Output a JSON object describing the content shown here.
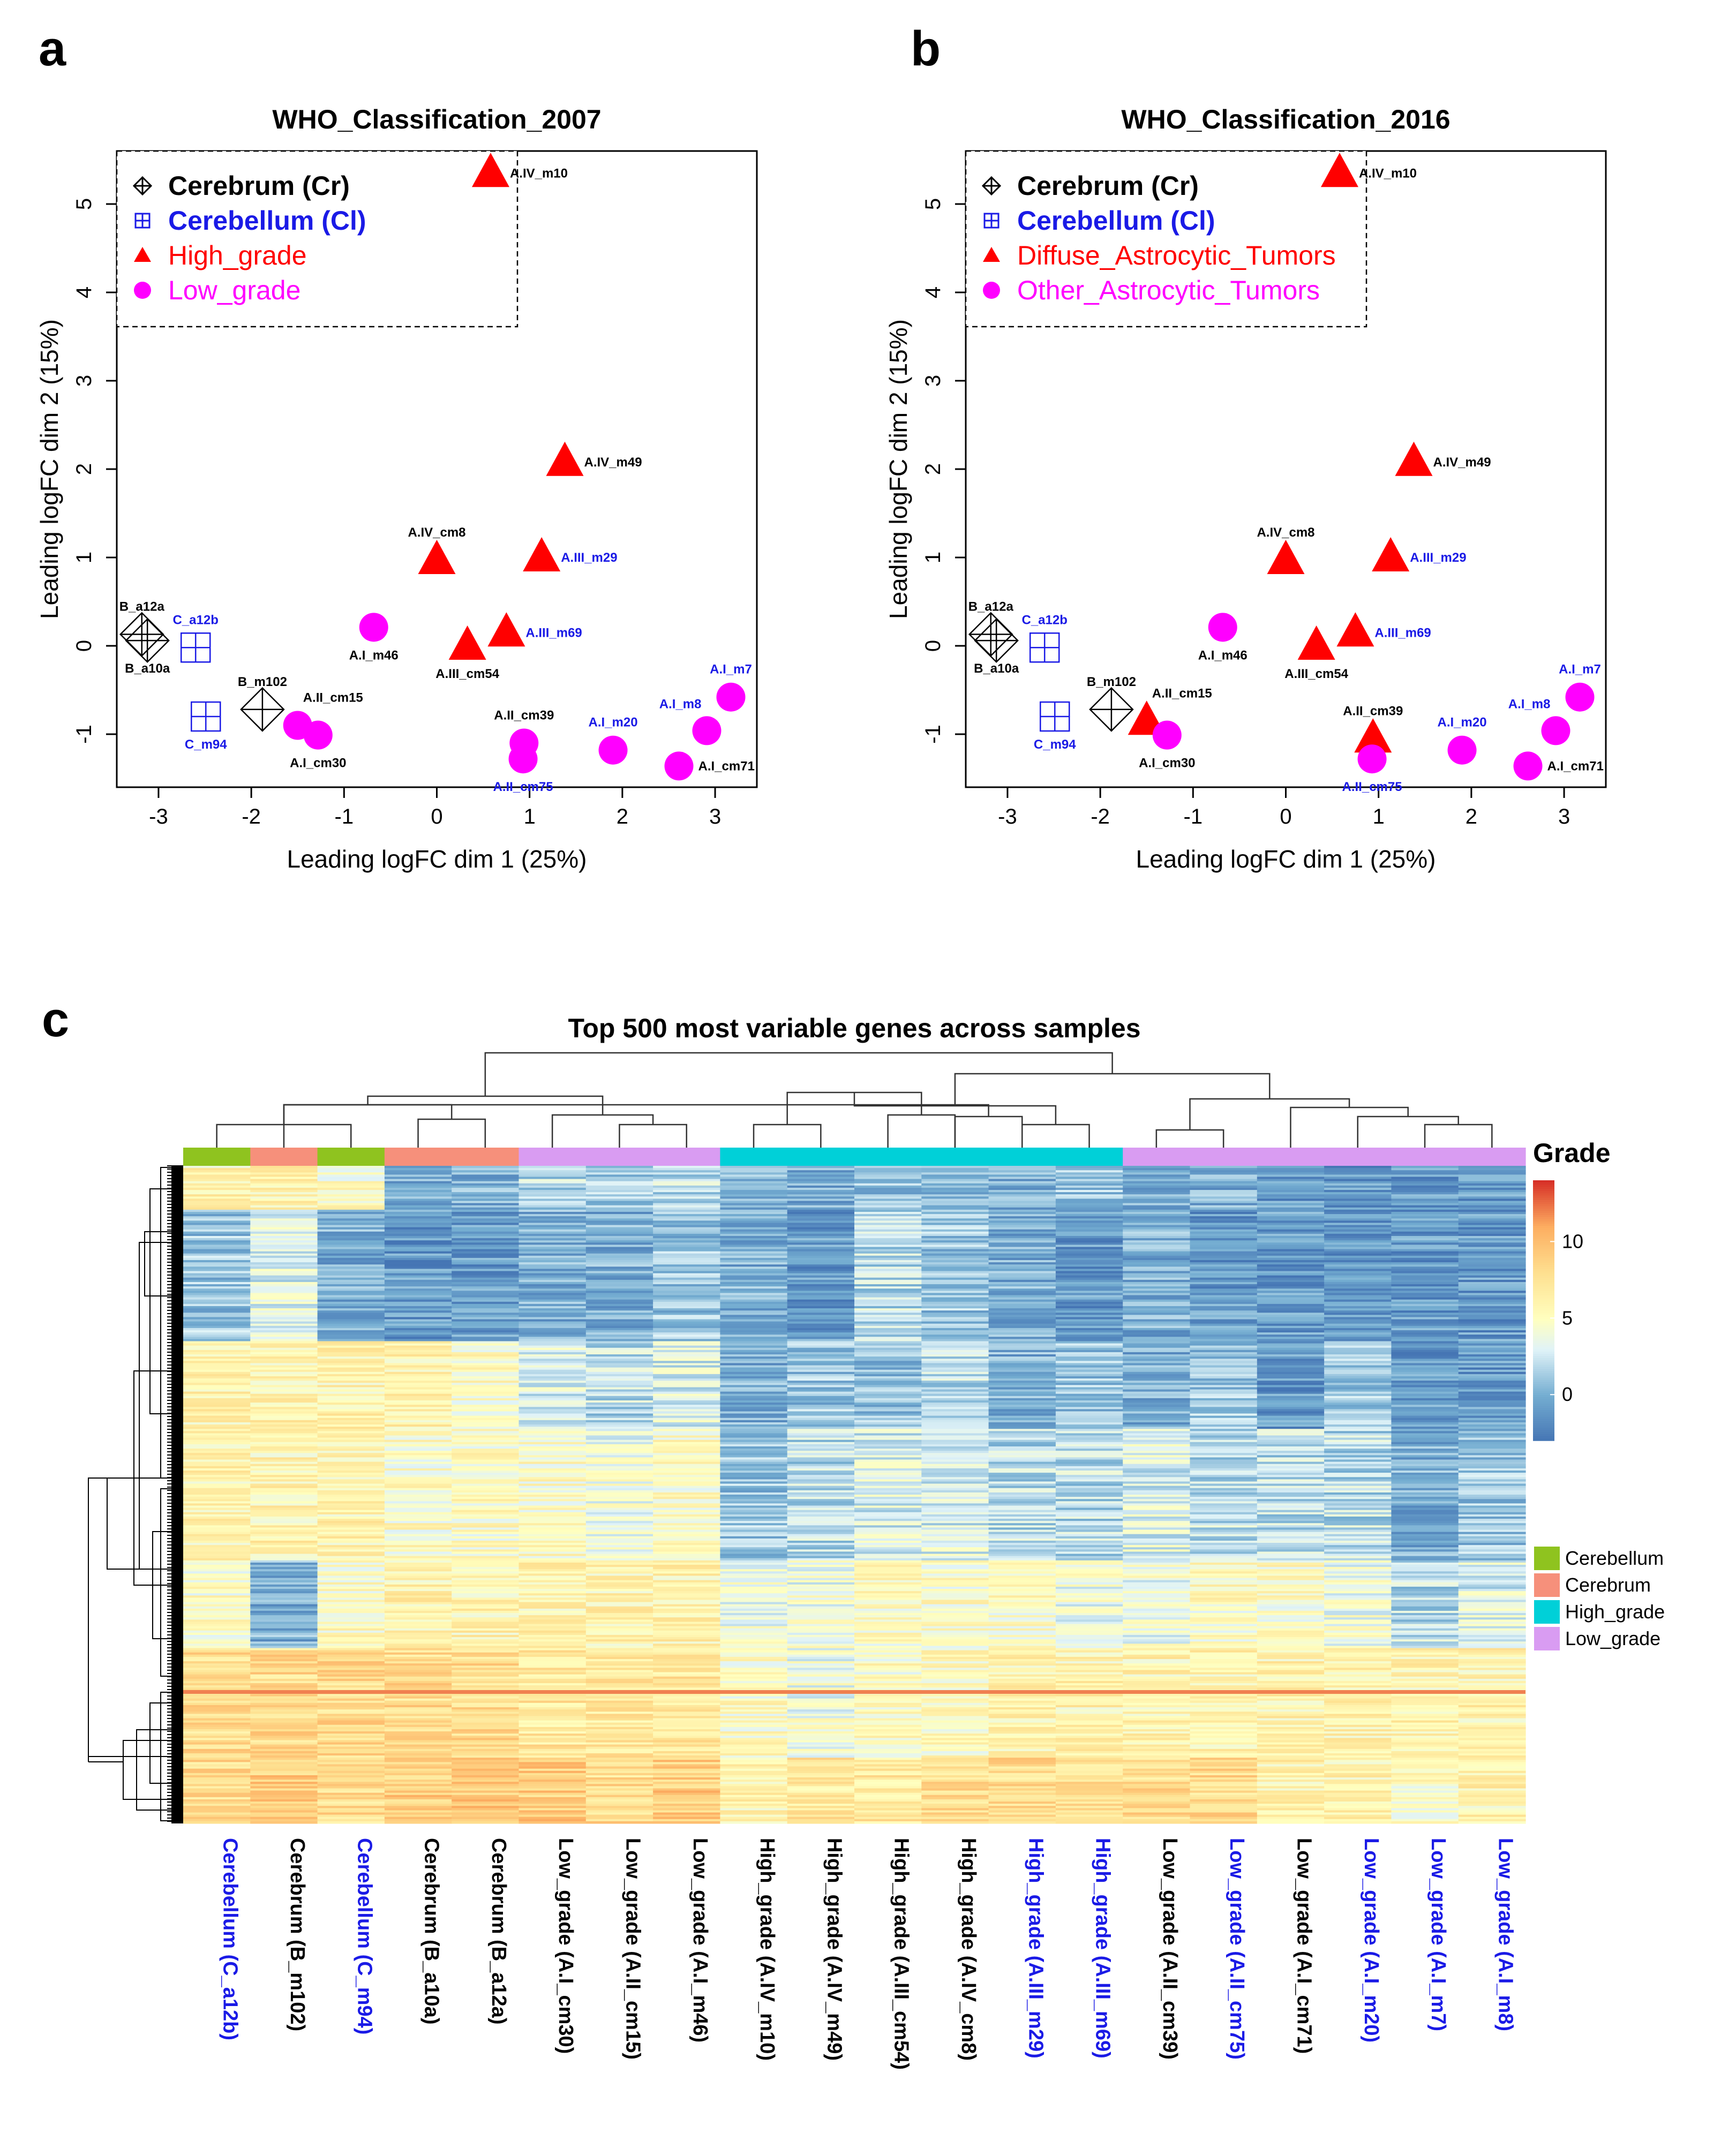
{
  "figure": {
    "panel_a_letter": "a",
    "panel_b_letter": "b",
    "panel_c_letter": "c"
  },
  "colors": {
    "black": "#000000",
    "blue": "#1a1ae6",
    "red": "#ff0000",
    "magenta": "#ff00ff",
    "cerebellum": "#8fc31f",
    "cerebrum": "#f6907b",
    "high_grade": "#00d0d8",
    "low_grade": "#d99cf2"
  },
  "chart_data": [
    {
      "type": "scatter",
      "title": "WHO_Classification_2007",
      "xlabel": "Leading logFC dim 1 (25%)",
      "ylabel": "Leading logFC dim 2 (15%)",
      "xlim": [
        -3.45,
        3.45
      ],
      "ylim": [
        -1.6,
        5.6
      ],
      "xticks": [
        -3,
        -2,
        -1,
        0,
        1,
        2,
        3
      ],
      "yticks": [
        -1,
        0,
        1,
        2,
        3,
        4,
        5
      ],
      "legend": [
        {
          "label": "Cerebrum (Cr)",
          "marker": "diamond-plus",
          "color": "black",
          "bold": true
        },
        {
          "label": "Cerebellum (Cl)",
          "marker": "square-cross",
          "color": "blue",
          "bold": true
        },
        {
          "label": "High_grade",
          "marker": "triangle",
          "color": "red",
          "bold": false
        },
        {
          "label": "Low_grade",
          "marker": "circle",
          "color": "magenta",
          "bold": false
        }
      ],
      "points": [
        {
          "name": "A.IV_m10",
          "x": 0.58,
          "y": 5.35,
          "marker": "triangle",
          "label_color": "black",
          "label_pos": "right"
        },
        {
          "name": "A.IV_m49",
          "x": 1.38,
          "y": 2.08,
          "marker": "triangle",
          "label_color": "black",
          "label_pos": "right"
        },
        {
          "name": "A.IV_cm8",
          "x": 0.0,
          "y": 0.97,
          "marker": "triangle",
          "label_color": "black",
          "label_pos": "top"
        },
        {
          "name": "A.III_m29",
          "x": 1.13,
          "y": 1.0,
          "marker": "triangle",
          "label_color": "blue",
          "label_pos": "right"
        },
        {
          "name": "A.III_m69",
          "x": 0.75,
          "y": 0.15,
          "marker": "triangle",
          "label_color": "blue",
          "label_pos": "right"
        },
        {
          "name": "A.III_cm54",
          "x": 0.33,
          "y": 0.0,
          "marker": "triangle",
          "label_color": "black",
          "label_pos": "bottom"
        },
        {
          "name": "A.I_m46",
          "x": -0.68,
          "y": 0.21,
          "marker": "circle",
          "label_color": "black",
          "label_pos": "bottom"
        },
        {
          "name": "A.II_cm15",
          "x": -1.5,
          "y": -0.9,
          "marker": "circle",
          "label_color": "black",
          "label_pos": "topright"
        },
        {
          "name": "A.I_cm30",
          "x": -1.28,
          "y": -1.01,
          "marker": "circle",
          "label_color": "black",
          "label_pos": "bottom"
        },
        {
          "name": "A.II_cm39",
          "x": 0.94,
          "y": -1.1,
          "marker": "circle",
          "label_color": "black",
          "label_pos": "top"
        },
        {
          "name": "A.II_cm75",
          "x": 0.93,
          "y": -1.28,
          "marker": "circle",
          "label_color": "blue",
          "label_pos": "bottom"
        },
        {
          "name": "A.I_m20",
          "x": 1.9,
          "y": -1.18,
          "marker": "circle",
          "label_color": "blue",
          "label_pos": "top"
        },
        {
          "name": "A.I_cm71",
          "x": 2.61,
          "y": -1.36,
          "marker": "circle",
          "label_color": "black",
          "label_pos": "right"
        },
        {
          "name": "A.I_m8",
          "x": 2.91,
          "y": -0.96,
          "marker": "circle",
          "label_color": "blue",
          "label_pos": "topleft"
        },
        {
          "name": "A.I_m7",
          "x": 3.17,
          "y": -0.58,
          "marker": "circle",
          "label_color": "blue",
          "label_pos": "top"
        },
        {
          "name": "B_a12a",
          "x": -3.18,
          "y": 0.13,
          "marker": "diamond",
          "label_color": "black",
          "label_pos": "top"
        },
        {
          "name": "B_a10a",
          "x": -3.12,
          "y": 0.06,
          "marker": "diamond",
          "label_color": "black",
          "label_pos": "bottom"
        },
        {
          "name": "B_m102",
          "x": -1.88,
          "y": -0.72,
          "marker": "diamond",
          "label_color": "black",
          "label_pos": "top"
        },
        {
          "name": "C_a12b",
          "x": -2.6,
          "y": -0.02,
          "marker": "square",
          "label_color": "blue",
          "label_pos": "top"
        },
        {
          "name": "C_m94",
          "x": -2.49,
          "y": -0.8,
          "marker": "square",
          "label_color": "blue",
          "label_pos": "bottom"
        }
      ]
    },
    {
      "type": "scatter",
      "title": "WHO_Classification_2016",
      "xlabel": "Leading logFC dim 1 (25%)",
      "ylabel": "Leading logFC dim 2 (15%)",
      "xlim": [
        -3.45,
        3.45
      ],
      "ylim": [
        -1.6,
        5.6
      ],
      "xticks": [
        -3,
        -2,
        -1,
        0,
        1,
        2,
        3
      ],
      "yticks": [
        -1,
        0,
        1,
        2,
        3,
        4,
        5
      ],
      "legend": [
        {
          "label": "Cerebrum (Cr)",
          "marker": "diamond-plus",
          "color": "black",
          "bold": true
        },
        {
          "label": "Cerebellum (Cl)",
          "marker": "square-cross",
          "color": "blue",
          "bold": true
        },
        {
          "label": "Diffuse_Astrocytic_Tumors",
          "marker": "triangle",
          "color": "red",
          "bold": false
        },
        {
          "label": "Other_Astrocytic_Tumors",
          "marker": "circle",
          "color": "magenta",
          "bold": false
        }
      ],
      "points": [
        {
          "name": "A.IV_m10",
          "x": 0.58,
          "y": 5.35,
          "marker": "triangle",
          "label_color": "black",
          "label_pos": "right"
        },
        {
          "name": "A.IV_m49",
          "x": 1.38,
          "y": 2.08,
          "marker": "triangle",
          "label_color": "black",
          "label_pos": "right"
        },
        {
          "name": "A.IV_cm8",
          "x": 0.0,
          "y": 0.97,
          "marker": "triangle",
          "label_color": "black",
          "label_pos": "top"
        },
        {
          "name": "A.III_m29",
          "x": 1.13,
          "y": 1.0,
          "marker": "triangle",
          "label_color": "blue",
          "label_pos": "right"
        },
        {
          "name": "A.III_m69",
          "x": 0.75,
          "y": 0.15,
          "marker": "triangle",
          "label_color": "blue",
          "label_pos": "right"
        },
        {
          "name": "A.III_cm54",
          "x": 0.33,
          "y": 0.0,
          "marker": "triangle",
          "label_color": "black",
          "label_pos": "bottom"
        },
        {
          "name": "A.II_cm15",
          "x": -1.5,
          "y": -0.85,
          "marker": "triangle",
          "label_color": "black",
          "label_pos": "topright"
        },
        {
          "name": "A.II_cm39",
          "x": 0.94,
          "y": -1.05,
          "marker": "triangle",
          "label_color": "black",
          "label_pos": "top"
        },
        {
          "name": "A.I_m46",
          "x": -0.68,
          "y": 0.21,
          "marker": "circle",
          "label_color": "black",
          "label_pos": "bottom"
        },
        {
          "name": "A.I_cm30",
          "x": -1.28,
          "y": -1.01,
          "marker": "circle",
          "label_color": "black",
          "label_pos": "bottom"
        },
        {
          "name": "A.II_cm75",
          "x": 0.93,
          "y": -1.28,
          "marker": "circle",
          "label_color": "blue",
          "label_pos": "bottom"
        },
        {
          "name": "A.I_m20",
          "x": 1.9,
          "y": -1.18,
          "marker": "circle",
          "label_color": "blue",
          "label_pos": "top"
        },
        {
          "name": "A.I_cm71",
          "x": 2.61,
          "y": -1.36,
          "marker": "circle",
          "label_color": "black",
          "label_pos": "right"
        },
        {
          "name": "A.I_m8",
          "x": 2.91,
          "y": -0.96,
          "marker": "circle",
          "label_color": "blue",
          "label_pos": "topleft"
        },
        {
          "name": "A.I_m7",
          "x": 3.17,
          "y": -0.58,
          "marker": "circle",
          "label_color": "blue",
          "label_pos": "top"
        },
        {
          "name": "B_a12a",
          "x": -3.18,
          "y": 0.13,
          "marker": "diamond",
          "label_color": "black",
          "label_pos": "top"
        },
        {
          "name": "B_a10a",
          "x": -3.12,
          "y": 0.06,
          "marker": "diamond",
          "label_color": "black",
          "label_pos": "bottom"
        },
        {
          "name": "B_m102",
          "x": -1.88,
          "y": -0.72,
          "marker": "diamond",
          "label_color": "black",
          "label_pos": "top"
        },
        {
          "name": "C_a12b",
          "x": -2.6,
          "y": -0.02,
          "marker": "square",
          "label_color": "blue",
          "label_pos": "top"
        },
        {
          "name": "C_m94",
          "x": -2.49,
          "y": -0.8,
          "marker": "square",
          "label_color": "blue",
          "label_pos": "bottom"
        }
      ]
    },
    {
      "type": "heatmap",
      "title": "Top 500 most variable genes across samples",
      "color_scale_title": "Grade",
      "color_scale_ticks": [
        0,
        5,
        10
      ],
      "color_scale_range": [
        -3,
        14
      ],
      "annotation_legend": [
        {
          "label": "Cerebellum",
          "color": "cerebellum"
        },
        {
          "label": "Cerebrum",
          "color": "cerebrum"
        },
        {
          "label": "High_grade",
          "color": "high_grade"
        },
        {
          "label": "Low_grade",
          "color": "low_grade"
        }
      ],
      "columns": [
        {
          "label": "Cerebellum (C_a12b)",
          "group": "cerebellum",
          "label_color": "blue"
        },
        {
          "label": "Cerebrum (B_m102)",
          "group": "cerebrum",
          "label_color": "black"
        },
        {
          "label": "Cerebellum (C_m94)",
          "group": "cerebellum",
          "label_color": "blue"
        },
        {
          "label": "Cerebrum (B_a10a)",
          "group": "cerebrum",
          "label_color": "black"
        },
        {
          "label": "Cerebrum (B_a12a)",
          "group": "cerebrum",
          "label_color": "black"
        },
        {
          "label": "Low_grade (A.I_cm30)",
          "group": "low_grade",
          "label_color": "black"
        },
        {
          "label": "Low_grade (A.II_cm15)",
          "group": "low_grade",
          "label_color": "black"
        },
        {
          "label": "Low_grade (A.I_m46)",
          "group": "low_grade",
          "label_color": "black"
        },
        {
          "label": "High_grade (A.IV_m10)",
          "group": "high_grade",
          "label_color": "black"
        },
        {
          "label": "High_grade (A.IV_m49)",
          "group": "high_grade",
          "label_color": "black"
        },
        {
          "label": "High_grade (A.III_cm54)",
          "group": "high_grade",
          "label_color": "black"
        },
        {
          "label": "High_grade (A.IV_cm8)",
          "group": "high_grade",
          "label_color": "black"
        },
        {
          "label": "High_grade (A.III_m29)",
          "group": "high_grade",
          "label_color": "blue"
        },
        {
          "label": "High_grade (A.III_m69)",
          "group": "high_grade",
          "label_color": "blue"
        },
        {
          "label": "Low_grade (A.II_cm39)",
          "group": "low_grade",
          "label_color": "black"
        },
        {
          "label": "Low_grade (A.II_cm75)",
          "group": "low_grade",
          "label_color": "blue"
        },
        {
          "label": "Low_grade (A.I_cm71)",
          "group": "low_grade",
          "label_color": "black"
        },
        {
          "label": "Low_grade (A.I_m20)",
          "group": "low_grade",
          "label_color": "blue"
        },
        {
          "label": "Low_grade (A.I_m7)",
          "group": "low_grade",
          "label_color": "blue"
        },
        {
          "label": "Low_grade (A.I_m8)",
          "group": "low_grade",
          "label_color": "blue"
        }
      ],
      "column_dendrogram": [
        [
          0,
          2
        ],
        [
          11,
          12
        ],
        [
          1,
          21
        ],
        [
          3,
          4
        ],
        [
          20,
          23
        ],
        [
          6,
          7
        ],
        [
          5,
          25
        ],
        [
          24,
          26
        ],
        [
          8,
          9
        ],
        [
          10,
          11
        ],
        [
          28,
          29
        ],
        [
          12,
          13
        ],
        [
          30,
          31
        ],
        [
          18,
          19
        ],
        [
          17,
          33
        ],
        [
          16,
          34
        ],
        [
          14,
          15
        ],
        [
          35,
          36
        ],
        [
          32,
          37
        ],
        [
          27,
          38
        ]
      ],
      "row_blocks": [
        {
          "rows": 20,
          "pattern": [
            6,
            6,
            5,
            0,
            0,
            2,
            1,
            2,
            0,
            0,
            1,
            1,
            0,
            1,
            0,
            0,
            -1,
            -1,
            -1,
            -1
          ]
        },
        {
          "rows": 60,
          "pattern": [
            1,
            3,
            0,
            -1,
            -1,
            0,
            0,
            1,
            0,
            -1,
            2,
            1,
            0,
            -1,
            0,
            -1,
            -1,
            -1,
            -1,
            -1
          ]
        },
        {
          "rows": 40,
          "pattern": [
            6,
            6,
            6,
            6,
            5,
            3,
            2,
            3,
            0,
            1,
            1,
            2,
            0,
            1,
            0,
            1,
            -1,
            1,
            -1,
            -1
          ]
        },
        {
          "rows": 60,
          "pattern": [
            6,
            6,
            6,
            5,
            5,
            5,
            4,
            5,
            1,
            2,
            3,
            3,
            2,
            2,
            3,
            2,
            2,
            2,
            0,
            1
          ]
        },
        {
          "rows": 40,
          "pattern": [
            5,
            0,
            5,
            6,
            6,
            6,
            6,
            6,
            4,
            4,
            5,
            5,
            5,
            4,
            4,
            5,
            5,
            4,
            2,
            3
          ]
        },
        {
          "rows": 50,
          "pattern": [
            8,
            8,
            8,
            8,
            8,
            7,
            7,
            7,
            5,
            4,
            5,
            5,
            6,
            6,
            6,
            6,
            6,
            6,
            6,
            6
          ]
        },
        {
          "rows": 30,
          "pattern": [
            8,
            9,
            8,
            9,
            9,
            9,
            8,
            9,
            6,
            7,
            7,
            8,
            8,
            8,
            8,
            8,
            6,
            6,
            5,
            6
          ]
        }
      ]
    }
  ]
}
